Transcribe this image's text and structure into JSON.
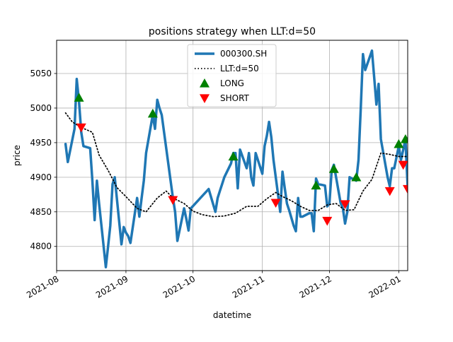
{
  "chart_data": {
    "type": "line",
    "title": "positions strategy when LLT:d=50",
    "xlabel": "datetime",
    "ylabel": "price",
    "grid": true,
    "legend_position": "top-center",
    "xlim": [
      "2021-08-01",
      "2022-01-05"
    ],
    "ylim": [
      4765,
      5098
    ],
    "x_ticks": [
      "2021-08",
      "2021-09",
      "2021-10",
      "2021-11",
      "2021-12",
      "2022-01"
    ],
    "y_ticks": [
      4800,
      4850,
      4900,
      4950,
      5000,
      5050
    ],
    "series": [
      {
        "name": "000300.SH",
        "style": "line",
        "color": "#1f77b4",
        "points": [
          [
            "2021-08-05",
            4948
          ],
          [
            "2021-08-06",
            4922
          ],
          [
            "2021-08-09",
            4970
          ],
          [
            "2021-08-10",
            5042
          ],
          [
            "2021-08-11",
            5010
          ],
          [
            "2021-08-12",
            4965
          ],
          [
            "2021-08-13",
            4945
          ],
          [
            "2021-08-16",
            4942
          ],
          [
            "2021-08-17",
            4895
          ],
          [
            "2021-08-18",
            4838
          ],
          [
            "2021-08-19",
            4895
          ],
          [
            "2021-08-20",
            4862
          ],
          [
            "2021-08-23",
            4770
          ],
          [
            "2021-08-24",
            4800
          ],
          [
            "2021-08-25",
            4830
          ],
          [
            "2021-08-26",
            4890
          ],
          [
            "2021-08-27",
            4900
          ],
          [
            "2021-08-30",
            4803
          ],
          [
            "2021-08-31",
            4828
          ],
          [
            "2021-09-01",
            4820
          ],
          [
            "2021-09-02",
            4815
          ],
          [
            "2021-09-03",
            4805
          ],
          [
            "2021-09-06",
            4870
          ],
          [
            "2021-09-07",
            4843
          ],
          [
            "2021-09-08",
            4870
          ],
          [
            "2021-09-09",
            4895
          ],
          [
            "2021-09-10",
            4935
          ],
          [
            "2021-09-13",
            4990
          ],
          [
            "2021-09-14",
            4970
          ],
          [
            "2021-09-15",
            5012
          ],
          [
            "2021-09-16",
            5000
          ],
          [
            "2021-09-17",
            4990
          ],
          [
            "2021-09-22",
            4870
          ],
          [
            "2021-09-23",
            4850
          ],
          [
            "2021-09-24",
            4808
          ],
          [
            "2021-09-27",
            4855
          ],
          [
            "2021-09-28",
            4840
          ],
          [
            "2021-09-29",
            4823
          ],
          [
            "2021-09-30",
            4855
          ],
          [
            "2021-10-08",
            4883
          ],
          [
            "2021-10-11",
            4850
          ],
          [
            "2021-10-12",
            4870
          ],
          [
            "2021-10-13",
            4880
          ],
          [
            "2021-10-14",
            4890
          ],
          [
            "2021-10-15",
            4900
          ],
          [
            "2021-10-18",
            4920
          ],
          [
            "2021-10-19",
            4935
          ],
          [
            "2021-10-20",
            4935
          ],
          [
            "2021-10-21",
            4884
          ],
          [
            "2021-10-22",
            4940
          ],
          [
            "2021-10-25",
            4913
          ],
          [
            "2021-10-26",
            4935
          ],
          [
            "2021-10-27",
            4900
          ],
          [
            "2021-10-28",
            4888
          ],
          [
            "2021-10-29",
            4935
          ],
          [
            "2021-11-01",
            4905
          ],
          [
            "2021-11-02",
            4945
          ],
          [
            "2021-11-03",
            4960
          ],
          [
            "2021-11-04",
            4980
          ],
          [
            "2021-11-05",
            4958
          ],
          [
            "2021-11-06",
            4925
          ],
          [
            "2021-11-08",
            4875
          ],
          [
            "2021-11-09",
            4850
          ],
          [
            "2021-11-10",
            4908
          ],
          [
            "2021-11-11",
            4885
          ],
          [
            "2021-11-12",
            4862
          ],
          [
            "2021-11-13",
            4852
          ],
          [
            "2021-11-15",
            4830
          ],
          [
            "2021-11-16",
            4822
          ],
          [
            "2021-11-17",
            4870
          ],
          [
            "2021-11-18",
            4843
          ],
          [
            "2021-11-19",
            4843
          ],
          [
            "2021-11-22",
            4848
          ],
          [
            "2021-11-23",
            4848
          ],
          [
            "2021-11-24",
            4822
          ],
          [
            "2021-11-25",
            4898
          ],
          [
            "2021-11-26",
            4890
          ],
          [
            "2021-11-29",
            4888
          ],
          [
            "2021-11-30",
            4858
          ],
          [
            "2021-12-01",
            4862
          ],
          [
            "2021-12-02",
            4910
          ],
          [
            "2021-12-03",
            4918
          ],
          [
            "2021-12-06",
            4863
          ],
          [
            "2021-12-07",
            4855
          ],
          [
            "2021-12-08",
            4833
          ],
          [
            "2021-12-09",
            4850
          ],
          [
            "2021-12-10",
            4900
          ],
          [
            "2021-12-13",
            4895
          ],
          [
            "2021-12-14",
            4925
          ],
          [
            "2021-12-15",
            5000
          ],
          [
            "2021-12-16",
            5078
          ],
          [
            "2021-12-17",
            5055
          ],
          [
            "2021-12-20",
            5083
          ],
          [
            "2021-12-21",
            5045
          ],
          [
            "2021-12-22",
            5005
          ],
          [
            "2021-12-23",
            5035
          ],
          [
            "2021-12-24",
            4955
          ],
          [
            "2021-12-27",
            4900
          ],
          [
            "2021-12-28",
            4887
          ],
          [
            "2021-12-29",
            4913
          ],
          [
            "2021-12-30",
            4913
          ],
          [
            "2022-01-01",
            4945
          ],
          [
            "2022-01-02",
            4925
          ],
          [
            "2022-01-03",
            4940
          ],
          [
            "2022-01-04",
            4955
          ],
          [
            "2022-01-05",
            4885
          ],
          [
            "2022-01-06",
            4935
          ],
          [
            "2022-01-07",
            4940
          ]
        ]
      },
      {
        "name": "LLT:d=50",
        "style": "dotted",
        "color": "#000000",
        "points": [
          [
            "2021-08-05",
            4993
          ],
          [
            "2021-08-08",
            4980
          ],
          [
            "2021-08-12",
            4972
          ],
          [
            "2021-08-17",
            4965
          ],
          [
            "2021-08-20",
            4932
          ],
          [
            "2021-08-24",
            4910
          ],
          [
            "2021-08-28",
            4885
          ],
          [
            "2021-09-01",
            4872
          ],
          [
            "2021-09-06",
            4855
          ],
          [
            "2021-09-10",
            4850
          ],
          [
            "2021-09-15",
            4870
          ],
          [
            "2021-09-19",
            4880
          ],
          [
            "2021-09-22",
            4870
          ],
          [
            "2021-09-27",
            4862
          ],
          [
            "2021-10-01",
            4851
          ],
          [
            "2021-10-05",
            4846
          ],
          [
            "2021-10-10",
            4843
          ],
          [
            "2021-10-15",
            4844
          ],
          [
            "2021-10-20",
            4848
          ],
          [
            "2021-10-25",
            4858
          ],
          [
            "2021-10-30",
            4858
          ],
          [
            "2021-11-03",
            4869
          ],
          [
            "2021-11-07",
            4878
          ],
          [
            "2021-11-10",
            4872
          ],
          [
            "2021-11-14",
            4866
          ],
          [
            "2021-11-18",
            4858
          ],
          [
            "2021-11-22",
            4852
          ],
          [
            "2021-11-26",
            4852
          ],
          [
            "2021-11-30",
            4860
          ],
          [
            "2021-12-04",
            4862
          ],
          [
            "2021-12-08",
            4852
          ],
          [
            "2021-12-12",
            4853
          ],
          [
            "2021-12-16",
            4880
          ],
          [
            "2021-12-20",
            4897
          ],
          [
            "2021-12-24",
            4935
          ],
          [
            "2021-12-28",
            4933
          ],
          [
            "2022-01-01",
            4930
          ],
          [
            "2022-01-05",
            4930
          ]
        ]
      },
      {
        "name": "LONG",
        "style": "marker-triangle-up",
        "color": "#008000",
        "points": [
          [
            "2021-08-11",
            5015
          ],
          [
            "2021-09-13",
            4992
          ],
          [
            "2021-10-19",
            4930
          ],
          [
            "2021-11-25",
            4888
          ],
          [
            "2021-12-03",
            4912
          ],
          [
            "2021-12-13",
            4900
          ],
          [
            "2022-01-01",
            4948
          ],
          [
            "2022-01-04",
            4955
          ],
          [
            "2022-01-07",
            4939
          ]
        ]
      },
      {
        "name": "SHORT",
        "style": "marker-triangle-down",
        "color": "#ff0000",
        "points": [
          [
            "2021-08-12",
            4972
          ],
          [
            "2021-09-22",
            4867
          ],
          [
            "2021-11-07",
            4863
          ],
          [
            "2021-11-30",
            4837
          ],
          [
            "2021-12-08",
            4861
          ],
          [
            "2021-12-28",
            4880
          ],
          [
            "2022-01-03",
            4918
          ],
          [
            "2022-01-05",
            4883
          ]
        ]
      }
    ]
  }
}
